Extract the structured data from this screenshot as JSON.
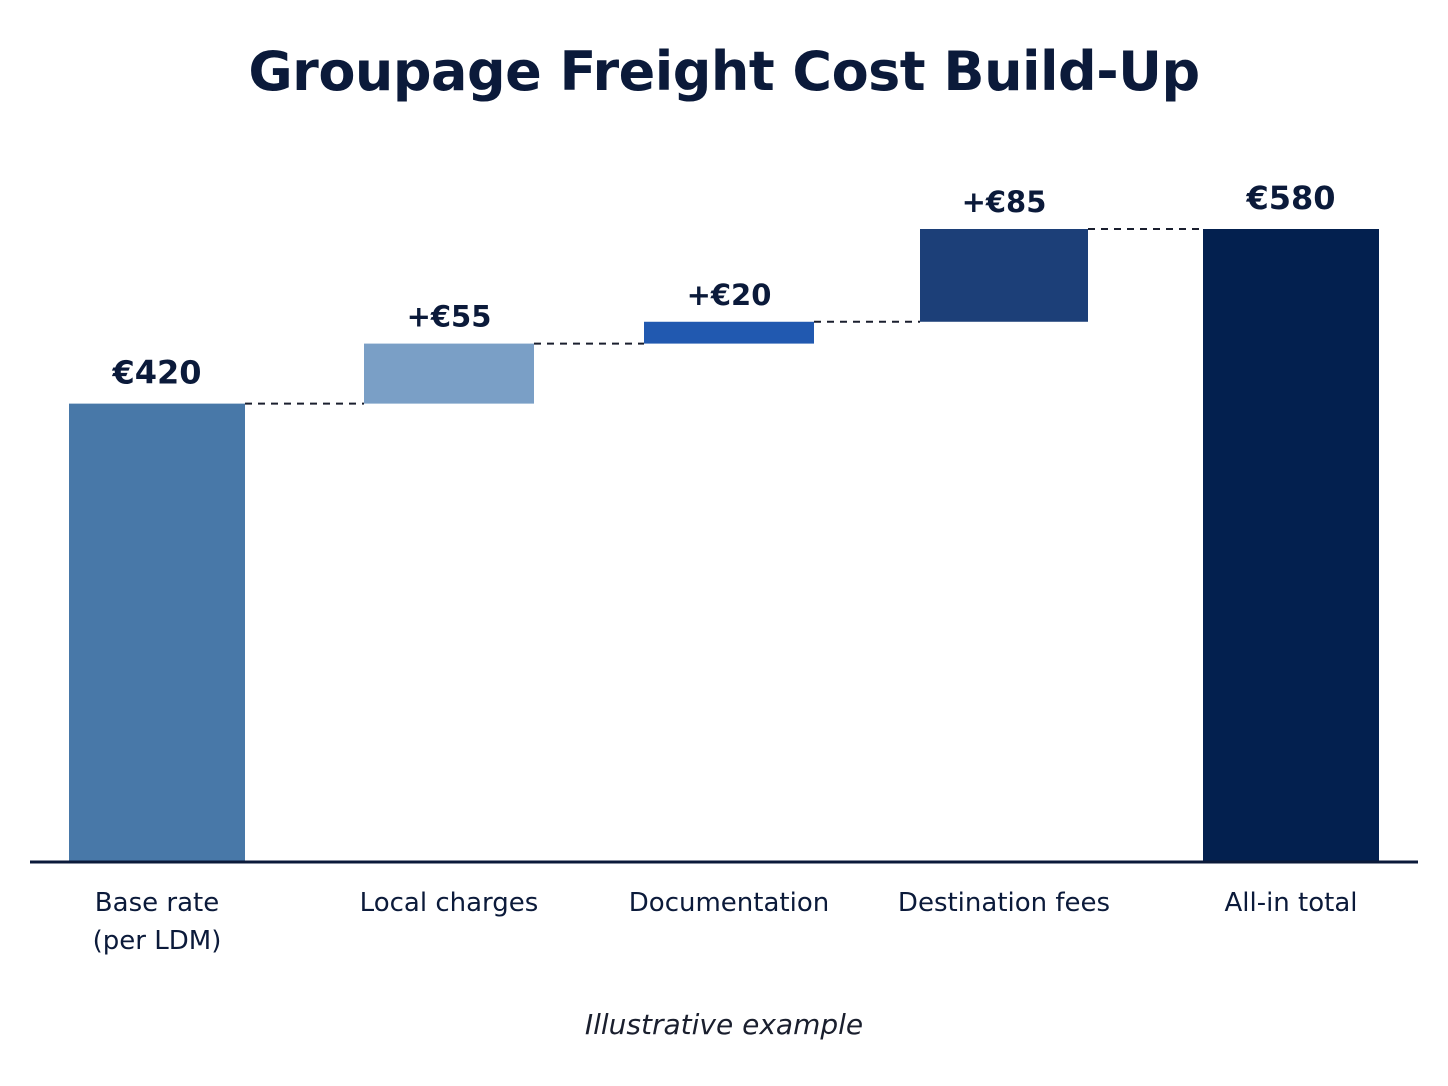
{
  "chart_data": {
    "type": "waterfall",
    "title": "Groupage Freight Cost Build-Up",
    "footnote": "Illustrative example",
    "currency": "€",
    "categories": [
      "Base rate (per LDM)",
      "Local charges",
      "Documentation",
      "Destination fees",
      "All-in total"
    ],
    "category_lines": [
      [
        "Base rate",
        "(per LDM)"
      ],
      [
        "Local charges"
      ],
      [
        "Documentation"
      ],
      [
        "Destination fees"
      ],
      [
        "All-in total"
      ]
    ],
    "steps": [
      {
        "category": "Base rate (per LDM)",
        "kind": "base",
        "value": 420,
        "label": "€420",
        "color": "#4878a8"
      },
      {
        "category": "Local charges",
        "kind": "increase",
        "value": 55,
        "label": "+€55",
        "color": "#7a9fc6"
      },
      {
        "category": "Documentation",
        "kind": "increase",
        "value": 20,
        "label": "+€20",
        "color": "#2159b0"
      },
      {
        "category": "Destination fees",
        "kind": "increase",
        "value": 85,
        "label": "+€85",
        "color": "#1c3f78"
      },
      {
        "category": "All-in total",
        "kind": "total",
        "value": 580,
        "label": "€580",
        "color": "#03204f"
      }
    ],
    "connectors": "dashed",
    "grid": false,
    "axis_color": "#0b1a3a"
  }
}
